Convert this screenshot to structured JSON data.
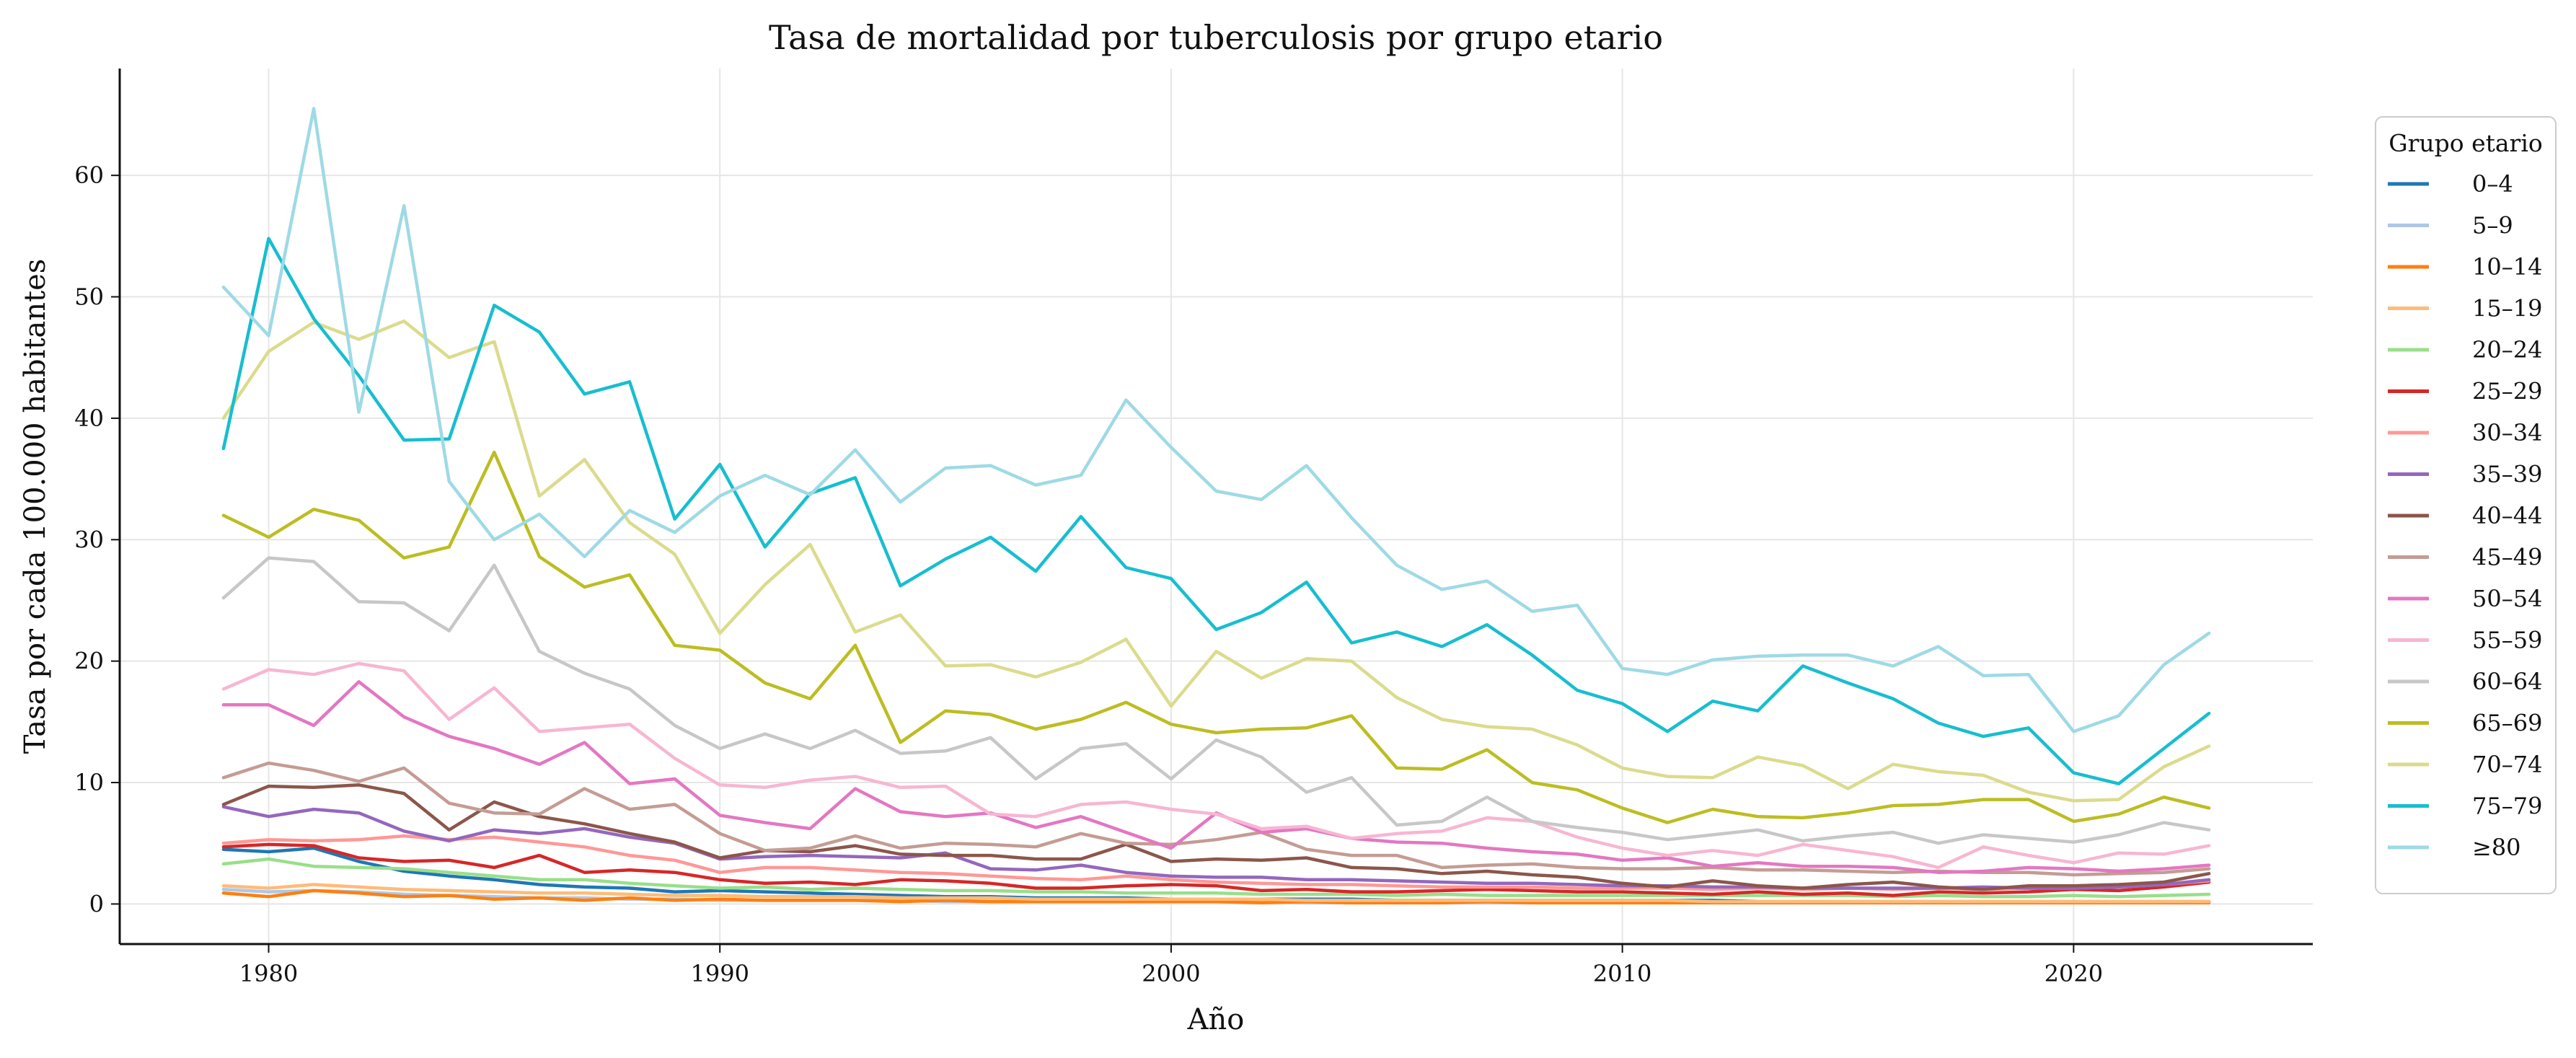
{
  "chart_data": {
    "type": "line",
    "title": "Tasa de mortalidad por tuberculosis por grupo etario",
    "xlabel": "Año",
    "ylabel": "Tasa por cada 100.000 habitantes",
    "xlim": [
      1976.7,
      2025.3
    ],
    "ylim": [
      -3.3,
      68.8
    ],
    "xticks": [
      1980,
      1990,
      2000,
      2010,
      2020
    ],
    "yticks": [
      0,
      10,
      20,
      30,
      40,
      50,
      60
    ],
    "grid": true,
    "legend_title": "Grupo etario",
    "legend_position": "right",
    "x": [
      1979,
      1980,
      1981,
      1982,
      1983,
      1984,
      1985,
      1986,
      1987,
      1988,
      1989,
      1990,
      1991,
      1992,
      1993,
      1994,
      1995,
      1996,
      1997,
      1998,
      1999,
      2000,
      2001,
      2002,
      2003,
      2004,
      2005,
      2006,
      2007,
      2008,
      2009,
      2010,
      2011,
      2012,
      2013,
      2014,
      2015,
      2016,
      2017,
      2018,
      2019,
      2020,
      2021,
      2022,
      2023
    ],
    "series": [
      {
        "name": "0–4",
        "color": "#1f77b4",
        "values": [
          4.5,
          4.3,
          4.6,
          3.5,
          2.7,
          2.3,
          2.0,
          1.6,
          1.4,
          1.3,
          1.0,
          1.1,
          1.0,
          0.9,
          0.8,
          0.7,
          0.6,
          0.6,
          0.5,
          0.5,
          0.5,
          0.4,
          0.4,
          0.4,
          0.4,
          0.4,
          0.3,
          0.3,
          0.3,
          0.3,
          0.3,
          0.3,
          0.3,
          0.3,
          0.2,
          0.2,
          0.2,
          0.2,
          0.2,
          0.2,
          0.2,
          0.2,
          0.2,
          0.2,
          0.2
        ]
      },
      {
        "name": "5–9",
        "color": "#aec7e8",
        "values": [
          1.2,
          1.0,
          1.1,
          1.0,
          0.8,
          0.7,
          0.6,
          0.5,
          0.5,
          0.4,
          0.4,
          0.3,
          0.3,
          0.3,
          0.3,
          0.3,
          0.2,
          0.2,
          0.2,
          0.2,
          0.2,
          0.2,
          0.2,
          0.2,
          0.1,
          0.1,
          0.1,
          0.1,
          0.1,
          0.1,
          0.1,
          0.1,
          0.1,
          0.1,
          0.1,
          0.1,
          0.1,
          0.1,
          0.1,
          0.1,
          0.1,
          0.1,
          0.1,
          0.1,
          0.1
        ]
      },
      {
        "name": "10–14",
        "color": "#ff7f0e",
        "values": [
          0.9,
          0.6,
          1.1,
          0.9,
          0.6,
          0.7,
          0.4,
          0.5,
          0.3,
          0.5,
          0.3,
          0.4,
          0.3,
          0.3,
          0.3,
          0.2,
          0.3,
          0.2,
          0.2,
          0.2,
          0.2,
          0.2,
          0.2,
          0.1,
          0.2,
          0.1,
          0.1,
          0.1,
          0.2,
          0.1,
          0.1,
          0.1,
          0.1,
          0.1,
          0.1,
          0.1,
          0.1,
          0.1,
          0.1,
          0.1,
          0.1,
          0.1,
          0.1,
          0.1,
          0.1
        ]
      },
      {
        "name": "15–19",
        "color": "#ffbb78",
        "values": [
          1.5,
          1.3,
          1.6,
          1.4,
          1.2,
          1.1,
          1.0,
          0.9,
          0.9,
          0.8,
          0.7,
          0.7,
          0.6,
          0.6,
          0.6,
          0.5,
          0.5,
          0.5,
          0.4,
          0.4,
          0.4,
          0.4,
          0.4,
          0.4,
          0.3,
          0.3,
          0.3,
          0.3,
          0.3,
          0.3,
          0.3,
          0.3,
          0.3,
          0.2,
          0.2,
          0.2,
          0.2,
          0.2,
          0.2,
          0.2,
          0.2,
          0.2,
          0.2,
          0.2,
          0.2
        ]
      },
      {
        "name": "20–24",
        "color": "#98df8a",
        "values": [
          3.3,
          3.7,
          3.1,
          3.0,
          2.9,
          2.6,
          2.3,
          2.0,
          2.0,
          1.7,
          1.5,
          1.3,
          1.4,
          1.2,
          1.3,
          1.2,
          1.1,
          1.1,
          1.0,
          1.0,
          0.9,
          0.9,
          0.9,
          0.8,
          0.8,
          0.8,
          0.7,
          0.8,
          0.7,
          0.7,
          0.7,
          0.7,
          0.7,
          0.7,
          0.7,
          0.7,
          0.7,
          0.6,
          0.7,
          0.6,
          0.6,
          0.7,
          0.6,
          0.7,
          0.8
        ]
      },
      {
        "name": "25–29",
        "color": "#d62728",
        "values": [
          4.7,
          4.9,
          4.8,
          3.8,
          3.5,
          3.6,
          3.0,
          4.0,
          2.6,
          2.8,
          2.6,
          2.0,
          1.7,
          1.8,
          1.6,
          2.0,
          1.9,
          1.7,
          1.3,
          1.3,
          1.5,
          1.6,
          1.5,
          1.1,
          1.2,
          1.0,
          1.0,
          1.1,
          1.2,
          1.1,
          1.0,
          1.0,
          0.9,
          0.8,
          1.0,
          0.8,
          0.9,
          0.7,
          1.0,
          0.9,
          1.0,
          1.2,
          1.1,
          1.4,
          1.8
        ]
      },
      {
        "name": "30–34",
        "color": "#ff9896",
        "values": [
          5.0,
          5.3,
          5.2,
          5.3,
          5.6,
          5.3,
          5.5,
          5.1,
          4.7,
          4.0,
          3.6,
          2.6,
          3.0,
          3.0,
          2.8,
          2.6,
          2.5,
          2.3,
          2.1,
          2.0,
          2.3,
          2.0,
          1.8,
          1.7,
          1.6,
          1.6,
          1.5,
          1.4,
          1.4,
          1.4,
          1.3,
          1.3,
          1.3,
          1.2,
          1.3,
          1.2,
          1.3,
          1.2,
          1.3,
          1.2,
          1.3,
          1.3,
          1.4,
          1.6,
          1.9
        ]
      },
      {
        "name": "35–39",
        "color": "#9467bd",
        "values": [
          8.0,
          7.2,
          7.8,
          7.5,
          6.0,
          5.2,
          6.1,
          5.8,
          6.2,
          5.5,
          5.0,
          3.7,
          3.9,
          4.0,
          3.9,
          3.8,
          4.2,
          2.9,
          2.8,
          3.2,
          2.6,
          2.3,
          2.2,
          2.2,
          2.0,
          2.0,
          1.9,
          1.8,
          1.7,
          1.7,
          1.6,
          1.5,
          1.5,
          1.4,
          1.4,
          1.3,
          1.3,
          1.3,
          1.3,
          1.4,
          1.3,
          1.3,
          1.4,
          1.6,
          2.0
        ]
      },
      {
        "name": "40–44",
        "color": "#8c564b",
        "values": [
          8.2,
          9.7,
          9.6,
          9.8,
          9.1,
          6.1,
          8.4,
          7.2,
          6.6,
          5.8,
          5.1,
          3.8,
          4.4,
          4.3,
          4.8,
          4.1,
          4.0,
          4.0,
          3.7,
          3.7,
          4.9,
          3.5,
          3.7,
          3.6,
          3.8,
          3.0,
          2.9,
          2.5,
          2.7,
          2.4,
          2.2,
          1.7,
          1.4,
          1.9,
          1.5,
          1.3,
          1.6,
          1.8,
          1.4,
          1.2,
          1.5,
          1.5,
          1.6,
          1.8,
          2.5
        ]
      },
      {
        "name": "45–49",
        "color": "#c49c94",
        "values": [
          10.4,
          11.6,
          11.0,
          10.1,
          11.2,
          8.3,
          7.5,
          7.4,
          9.5,
          7.8,
          8.2,
          5.8,
          4.4,
          4.6,
          5.6,
          4.6,
          5.0,
          4.9,
          4.7,
          5.8,
          5.0,
          4.9,
          5.3,
          5.9,
          4.5,
          4.0,
          4.0,
          3.0,
          3.2,
          3.3,
          3.0,
          2.9,
          2.9,
          3.0,
          2.8,
          2.8,
          2.7,
          2.6,
          2.7,
          2.6,
          2.6,
          2.4,
          2.5,
          2.6,
          2.9
        ]
      },
      {
        "name": "50–54",
        "color": "#e377c2",
        "values": [
          16.4,
          16.4,
          14.7,
          18.3,
          15.4,
          13.8,
          12.8,
          11.5,
          13.3,
          9.9,
          10.3,
          7.3,
          6.7,
          6.2,
          9.5,
          7.6,
          7.2,
          7.5,
          6.3,
          7.2,
          5.9,
          4.6,
          7.5,
          5.9,
          6.2,
          5.4,
          5.1,
          5.0,
          4.6,
          4.3,
          4.1,
          3.6,
          3.8,
          3.1,
          3.4,
          3.1,
          3.1,
          3.0,
          2.6,
          2.7,
          3.0,
          2.9,
          2.7,
          2.9,
          3.2
        ]
      },
      {
        "name": "55–59",
        "color": "#f7b6d2",
        "values": [
          17.7,
          19.3,
          18.9,
          19.8,
          19.2,
          15.2,
          17.8,
          14.2,
          14.5,
          14.8,
          12.0,
          9.8,
          9.6,
          10.2,
          10.5,
          9.6,
          9.7,
          7.4,
          7.2,
          8.2,
          8.4,
          7.8,
          7.4,
          6.2,
          6.4,
          5.4,
          5.8,
          6.0,
          7.1,
          6.8,
          5.5,
          4.6,
          4.0,
          4.4,
          4.0,
          4.9,
          4.4,
          3.9,
          3.0,
          4.7,
          4.0,
          3.4,
          4.2,
          4.1,
          4.8
        ]
      },
      {
        "name": "60–64",
        "color": "#c7c7c7",
        "values": [
          25.2,
          28.5,
          28.2,
          24.9,
          24.8,
          22.5,
          27.9,
          20.8,
          19.0,
          17.7,
          14.7,
          12.8,
          14.0,
          12.8,
          14.3,
          12.4,
          12.6,
          13.7,
          10.3,
          12.8,
          13.2,
          10.3,
          13.5,
          12.1,
          9.2,
          10.4,
          6.5,
          6.8,
          8.8,
          6.8,
          6.3,
          5.9,
          5.3,
          5.7,
          6.1,
          5.2,
          5.6,
          5.9,
          5.0,
          5.7,
          5.4,
          5.1,
          5.7,
          6.7,
          6.1
        ]
      },
      {
        "name": "65–69",
        "color": "#bcbd22",
        "values": [
          32.0,
          30.2,
          32.5,
          31.6,
          28.5,
          29.4,
          37.2,
          28.6,
          26.1,
          27.1,
          21.3,
          20.9,
          18.2,
          16.9,
          21.3,
          13.3,
          15.9,
          15.6,
          14.4,
          15.2,
          16.6,
          14.8,
          14.1,
          14.4,
          14.5,
          15.5,
          11.2,
          11.1,
          12.7,
          10.0,
          9.4,
          7.9,
          6.7,
          7.8,
          7.2,
          7.1,
          7.5,
          8.1,
          8.2,
          8.6,
          8.6,
          6.8,
          7.4,
          8.8,
          7.9
        ]
      },
      {
        "name": "70–74",
        "color": "#dbdb8d",
        "values": [
          40.0,
          45.5,
          47.9,
          46.5,
          48.0,
          45.0,
          46.3,
          33.6,
          36.6,
          31.4,
          28.8,
          22.3,
          26.3,
          29.6,
          22.4,
          23.8,
          19.6,
          19.7,
          18.7,
          19.9,
          21.8,
          16.3,
          20.8,
          18.6,
          20.2,
          20.0,
          17.0,
          15.2,
          14.6,
          14.4,
          13.1,
          11.2,
          10.5,
          10.4,
          12.1,
          11.4,
          9.5,
          11.5,
          10.9,
          10.6,
          9.2,
          8.5,
          8.6,
          11.3,
          13.0
        ]
      },
      {
        "name": "75–79",
        "color": "#17becf",
        "values": [
          37.5,
          54.8,
          48.2,
          43.5,
          38.2,
          38.3,
          49.3,
          47.1,
          42.0,
          43.0,
          31.7,
          36.2,
          29.4,
          33.8,
          35.1,
          26.2,
          28.4,
          30.2,
          27.4,
          31.9,
          27.7,
          26.8,
          22.6,
          24.0,
          26.5,
          21.5,
          22.4,
          21.2,
          23.0,
          20.5,
          17.6,
          16.5,
          14.2,
          16.7,
          15.9,
          19.6,
          18.2,
          16.9,
          14.9,
          13.8,
          14.5,
          10.8,
          9.9,
          12.8,
          15.7
        ]
      },
      {
        "name": "≥80",
        "color": "#9edae5",
        "values": [
          50.8,
          46.8,
          65.5,
          40.5,
          57.5,
          34.8,
          30.0,
          32.1,
          28.6,
          32.4,
          30.6,
          33.6,
          35.3,
          33.7,
          37.4,
          33.1,
          35.9,
          36.1,
          34.5,
          35.3,
          41.5,
          37.6,
          34.0,
          33.3,
          36.1,
          31.8,
          27.9,
          25.9,
          26.6,
          24.1,
          24.6,
          19.4,
          18.9,
          20.1,
          20.4,
          20.5,
          20.5,
          19.6,
          21.2,
          18.8,
          18.9,
          14.2,
          15.5,
          19.7,
          22.3
        ]
      }
    ]
  }
}
